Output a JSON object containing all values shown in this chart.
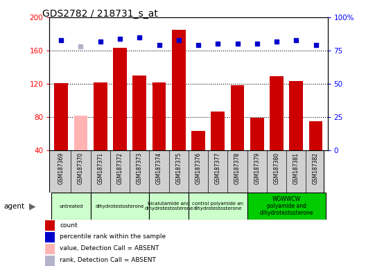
{
  "title": "GDS2782 / 218731_s_at",
  "samples": [
    "GSM187369",
    "GSM187370",
    "GSM187371",
    "GSM187372",
    "GSM187373",
    "GSM187374",
    "GSM187375",
    "GSM187376",
    "GSM187377",
    "GSM187378",
    "GSM187379",
    "GSM187380",
    "GSM187381",
    "GSM187382"
  ],
  "counts": [
    121,
    82,
    122,
    163,
    130,
    122,
    185,
    63,
    87,
    118,
    79,
    129,
    123,
    75
  ],
  "absent_count": [
    false,
    true,
    false,
    false,
    false,
    false,
    false,
    false,
    false,
    false,
    false,
    false,
    false,
    false
  ],
  "percentile_ranks": [
    83,
    78,
    82,
    84,
    85,
    79,
    83,
    79,
    80,
    80,
    80,
    82,
    83,
    79
  ],
  "absent_rank": [
    false,
    true,
    false,
    false,
    false,
    false,
    false,
    false,
    false,
    false,
    false,
    false,
    false,
    false
  ],
  "ylim_left": [
    40,
    200
  ],
  "ylim_right": [
    0,
    100
  ],
  "yticks_left": [
    40,
    80,
    120,
    160,
    200
  ],
  "yticks_right": [
    0,
    25,
    50,
    75,
    100
  ],
  "yticklabels_right": [
    "0",
    "25",
    "50",
    "75",
    "100%"
  ],
  "bar_color": "#cc0000",
  "absent_bar_color": "#ffb3b3",
  "rank_color": "#0000cc",
  "absent_rank_color": "#b3b3cc",
  "grid_color": "#000000",
  "plot_bg": "#ffffff",
  "sample_box_color": "#d0d0d0",
  "groups": [
    {
      "label": "untreated",
      "start": 0,
      "end": 2,
      "color": "#ccffcc"
    },
    {
      "label": "dihydrotestosterone",
      "start": 2,
      "end": 5,
      "color": "#ccffcc"
    },
    {
      "label": "bicalutamide and\ndihydrotestosterone",
      "start": 5,
      "end": 7,
      "color": "#ccffcc"
    },
    {
      "label": "control polyamide an\ndihydrotestosterone",
      "start": 7,
      "end": 10,
      "color": "#ccffcc"
    },
    {
      "label": "WGWWCW\npolyamide and\ndihydrotestosterone",
      "start": 10,
      "end": 14,
      "color": "#00cc00"
    }
  ],
  "legend_items": [
    {
      "label": "count",
      "color": "#cc0000"
    },
    {
      "label": "percentile rank within the sample",
      "color": "#0000cc"
    },
    {
      "label": "value, Detection Call = ABSENT",
      "color": "#ffb3b3"
    },
    {
      "label": "rank, Detection Call = ABSENT",
      "color": "#b3b3cc"
    }
  ]
}
